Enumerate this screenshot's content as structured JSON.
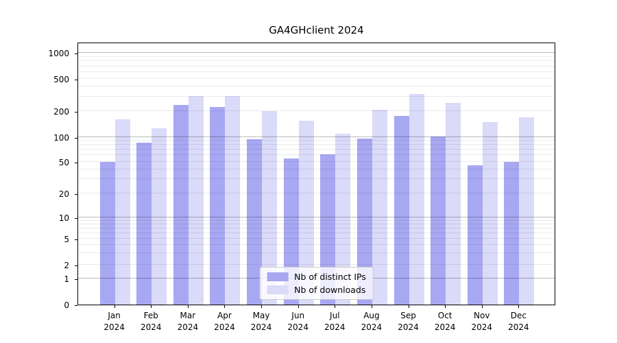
{
  "title": "GA4GHclient 2024",
  "chart_data": {
    "type": "bar",
    "categories": [
      "Jan 2024",
      "Feb 2024",
      "Mar 2024",
      "Apr 2024",
      "May 2024",
      "Jun 2024",
      "Jul 2024",
      "Aug 2024",
      "Sep 2024",
      "Oct 2024",
      "Nov 2024",
      "Dec 2024"
    ],
    "series": [
      {
        "name": "Nb of distinct IPs",
        "color": "#a7a7f2",
        "values": [
          50,
          86,
          235,
          225,
          94,
          55,
          62,
          95,
          175,
          101,
          45,
          50
        ]
      },
      {
        "name": "Nb of downloads",
        "color": "#dadaf9",
        "values": [
          160,
          125,
          305,
          308,
          200,
          154,
          110,
          206,
          325,
          250,
          148,
          170
        ]
      }
    ],
    "yaxis": {
      "scale": "symlog",
      "tick_labels": [
        "0",
        "1",
        "2",
        "5",
        "10",
        "20",
        "50",
        "100",
        "200",
        "500",
        "1000"
      ],
      "major_gridlines": [
        1,
        10,
        100,
        1000
      ],
      "minor_gridlines": [
        2,
        3,
        4,
        5,
        6,
        7,
        8,
        9,
        20,
        30,
        40,
        50,
        60,
        70,
        80,
        90,
        200,
        300,
        400,
        500,
        600,
        700,
        800,
        900
      ]
    },
    "grid": true,
    "legend": {
      "position": "lower center",
      "entries": [
        "Nb of distinct IPs",
        "Nb of downloads"
      ]
    }
  }
}
